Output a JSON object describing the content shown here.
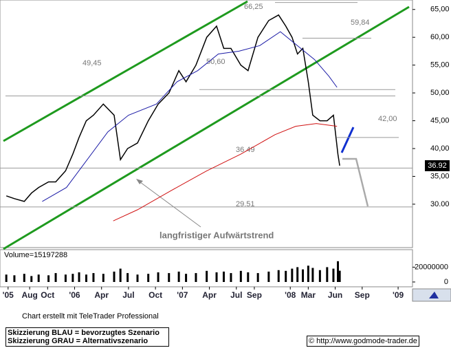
{
  "chart_data": [
    {
      "type": "line",
      "xlim": [
        3.7,
        49.6
      ],
      "xticks": [
        {
          "value": 4.6,
          "label": "'05"
        },
        {
          "value": 7,
          "label": "Aug"
        },
        {
          "value": 9,
          "label": "Oct"
        },
        {
          "value": 12,
          "label": "'06"
        },
        {
          "value": 15,
          "label": "Apr"
        },
        {
          "value": 18,
          "label": "Jul"
        },
        {
          "value": 21,
          "label": "Oct"
        },
        {
          "value": 24,
          "label": "'07"
        },
        {
          "value": 27,
          "label": "Apr"
        },
        {
          "value": 30,
          "label": "Jul"
        },
        {
          "value": 32,
          "label": "Sep"
        },
        {
          "value": 36,
          "label": "'08"
        },
        {
          "value": 38,
          "label": "Mar"
        },
        {
          "value": 41,
          "label": "Jun"
        },
        {
          "value": 44,
          "label": "Sep"
        },
        {
          "value": 48,
          "label": "'09"
        }
      ],
      "ylim": [
        22.2,
        66.7
      ],
      "yticks": [
        {
          "value": 30,
          "label": "30.00"
        },
        {
          "value": 35,
          "label": "35,00"
        },
        {
          "value": 40,
          "label": "40,00"
        },
        {
          "value": 45,
          "label": "45,00"
        },
        {
          "value": 50,
          "label": "50,00"
        },
        {
          "value": 55,
          "label": "55,00"
        },
        {
          "value": 60,
          "label": "60,00"
        },
        {
          "value": 65,
          "label": "65,00"
        }
      ],
      "series": [
        {
          "color": "#000000",
          "x": [
            4.4,
            5.3,
            6.4,
            7.2,
            8.0,
            9.1,
            9.9,
            11.0,
            11.8,
            12.5,
            13.3,
            14.1,
            15.2,
            16.4,
            17.1,
            17.9,
            19.0,
            20.2,
            21.3,
            22.5,
            23.6,
            24.4,
            25.5,
            26.7,
            27.8,
            28.6,
            29.4,
            30.5,
            31.3,
            32.4,
            33.6,
            34.7,
            35.5,
            36.2,
            36.8,
            37.4,
            38.0,
            38.5,
            39.3,
            40.1,
            40.8,
            41.3,
            41.5
          ],
          "values": [
            31.5,
            31,
            30.5,
            32,
            33,
            34,
            34,
            36,
            39,
            42,
            45,
            46,
            48,
            46,
            38,
            40,
            41,
            45,
            48,
            50,
            54,
            52,
            55,
            60,
            62,
            58,
            58,
            55,
            54,
            60,
            63,
            64,
            62,
            60,
            57,
            58,
            52,
            46,
            45,
            45,
            46,
            39,
            36.92
          ]
        },
        {
          "color": "#1a1aa6",
          "x": [
            8.4,
            11.1,
            13.4,
            15.7,
            18.0,
            21.1,
            23.4,
            25.7,
            28.0,
            30.3,
            32.6,
            34.9,
            36.4,
            38.7,
            40.3,
            41.2
          ],
          "values": [
            30.5,
            33,
            38,
            43,
            46,
            48,
            52,
            54,
            57,
            57.5,
            58.5,
            61,
            59,
            56,
            53,
            51
          ]
        },
        {
          "color": "#d01010",
          "x": [
            16.3,
            19.0,
            22.8,
            26.7,
            30.5,
            34.3,
            36.6,
            38.9,
            41.2
          ],
          "values": [
            27,
            29,
            32.5,
            36,
            39,
            42.5,
            44,
            44.5,
            44
          ]
        }
      ],
      "annotations": [
        {
          "value": 66.25,
          "label": "66,25"
        },
        {
          "value": 59.84,
          "label": "59,84"
        },
        {
          "value": 49.45,
          "label": "49,45"
        },
        {
          "value": 50.6,
          "label": "50,60"
        },
        {
          "value": 42,
          "label": "42,00"
        },
        {
          "value": 36.49,
          "label": "36.49"
        },
        {
          "value": 29.51,
          "label": "29.51"
        }
      ],
      "last_price": {
        "value": 36.92,
        "label": "36.92"
      },
      "trend_label": "langfristiger Aufwärtstrend"
    },
    {
      "type": "bar",
      "title": "Volume=15197288",
      "color": "#000000",
      "x": [
        4.4,
        5.3,
        6.4,
        7.2,
        8.0,
        9.1,
        9.9,
        11.0,
        11.8,
        12.5,
        13.3,
        14.1,
        15.2,
        16.4,
        17.1,
        17.9,
        19.0,
        20.2,
        21.3,
        22.5,
        23.6,
        24.4,
        25.5,
        26.7,
        27.8,
        28.6,
        29.4,
        30.5,
        31.3,
        32.4,
        33.6,
        34.7,
        35.5,
        36.2,
        36.8,
        37.4,
        38.0,
        38.5,
        39.3,
        40.1,
        40.8,
        41.3,
        41.5
      ],
      "values": [
        10000000,
        9000000,
        11000000,
        8000000,
        10000000,
        9000000,
        12000000,
        10000000,
        11000000,
        13000000,
        10000000,
        12000000,
        11000000,
        14000000,
        18000000,
        12000000,
        10000000,
        11000000,
        13000000,
        12000000,
        14000000,
        11000000,
        12000000,
        15000000,
        13000000,
        14000000,
        12000000,
        15000000,
        13000000,
        12000000,
        14000000,
        16000000,
        15000000,
        18000000,
        20000000,
        17000000,
        22000000,
        19000000,
        16000000,
        20000000,
        18000000,
        28000000,
        15197288
      ],
      "ylim": [
        0,
        52900000
      ],
      "yticks": [
        0,
        20000000
      ]
    }
  ],
  "footer": {
    "credit": "Chart erstellt mit TeleTrader Professional",
    "legend_blue": "Skizzierung BLAU = bevorzugtes Szenario",
    "legend_grey": "Skizzierung GRAU = Alternativszenario",
    "source": "© http://www.godmode-trader.de"
  }
}
